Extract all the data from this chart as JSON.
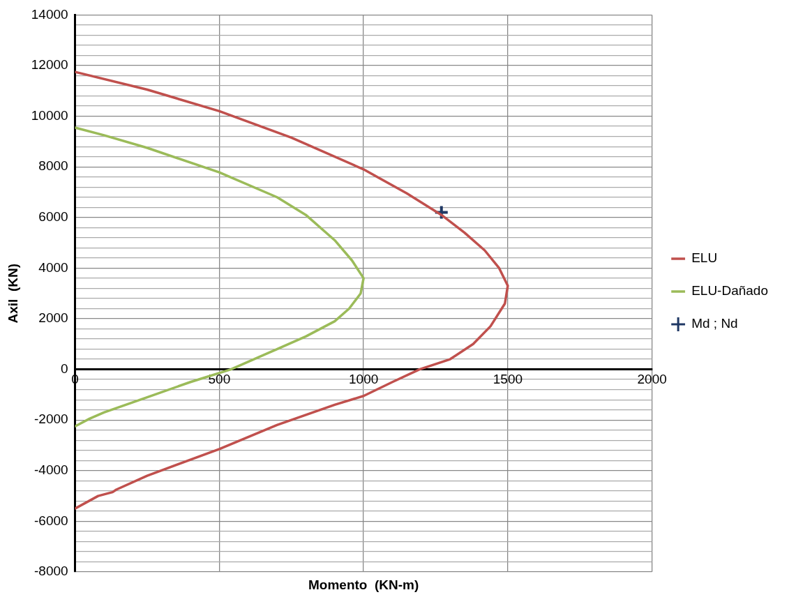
{
  "chart_data": {
    "type": "line",
    "xlabel": "Momento  (KN-m)",
    "ylabel": "Axil  (KN)",
    "xlim": [
      0,
      2000
    ],
    "xticks": [
      0,
      500,
      1000,
      1500,
      2000
    ],
    "ylim": [
      -8000,
      14000
    ],
    "yticks": [
      -8000,
      {
        "value": -7600,
        "label": null
      },
      {
        "value": -7200,
        "label": null
      },
      {
        "value": -6800,
        "label": null
      },
      {
        "value": -6400,
        "label": null
      },
      -6000,
      {
        "value": -5600,
        "label": null
      },
      {
        "value": -5200,
        "label": null
      },
      {
        "value": -4800,
        "label": null
      },
      {
        "value": -4400,
        "label": null
      },
      -4000,
      {
        "value": -3600,
        "label": null
      },
      {
        "value": -3200,
        "label": null
      },
      {
        "value": -2800,
        "label": null
      },
      {
        "value": -2400,
        "label": null
      },
      -2000,
      {
        "value": -1600,
        "label": null
      },
      {
        "value": -1200,
        "label": null
      },
      {
        "value": -800,
        "label": null
      },
      {
        "value": -400,
        "label": null
      },
      0,
      {
        "value": 400,
        "label": null
      },
      {
        "value": 800,
        "label": null
      },
      {
        "value": 1200,
        "label": null
      },
      {
        "value": 1600,
        "label": null
      },
      2000,
      {
        "value": 2400,
        "label": null
      },
      {
        "value": 2800,
        "label": null
      },
      {
        "value": 3200,
        "label": null
      },
      {
        "value": 3600,
        "label": null
      },
      4000,
      {
        "value": 4400,
        "label": null
      },
      {
        "value": 4800,
        "label": null
      },
      {
        "value": 5200,
        "label": null
      },
      {
        "value": 5600,
        "label": null
      },
      6000,
      {
        "value": 6400,
        "label": null
      },
      {
        "value": 6800,
        "label": null
      },
      {
        "value": 7200,
        "label": null
      },
      {
        "value": 7600,
        "label": null
      },
      8000,
      {
        "value": 8400,
        "label": null
      },
      {
        "value": 8800,
        "label": null
      },
      {
        "value": 9200,
        "label": null
      },
      {
        "value": 9600,
        "label": null
      },
      10000,
      {
        "value": 10400,
        "label": null
      },
      {
        "value": 10800,
        "label": null
      },
      {
        "value": 11200,
        "label": null
      },
      {
        "value": 11600,
        "label": null
      },
      12000,
      {
        "value": 12400,
        "label": null
      },
      {
        "value": 12800,
        "label": null
      },
      {
        "value": 13200,
        "label": null
      },
      {
        "value": 13600,
        "label": null
      },
      14000
    ],
    "grid": true,
    "legend": "right",
    "marker": "none",
    "line_style": "solid",
    "series": [
      {
        "name": "ELU",
        "color": "#c0504d",
        "x": [
          0,
          250,
          500,
          750,
          1000,
          1150,
          1270,
          1350,
          1420,
          1470,
          1500,
          1490,
          1440,
          1380,
          1300,
          1194,
          1100,
          1000,
          900,
          700,
          500,
          250,
          143,
          130,
          80,
          0
        ],
        "values": [
          11750,
          11050,
          10200,
          9150,
          7900,
          6950,
          6100,
          5400,
          4700,
          4000,
          3300,
          2600,
          1700,
          1000,
          400,
          0,
          -500,
          -1050,
          -1400,
          -2200,
          -3150,
          -4200,
          -4750,
          -4850,
          -5000,
          -5500
        ]
      },
      {
        "name": "ELU-Dañado",
        "color": "#9bbb59",
        "x": [
          0,
          100,
          250,
          500,
          700,
          800,
          900,
          960,
          1000,
          990,
          950,
          900,
          800,
          700,
          540,
          400,
          250,
          150,
          100,
          50,
          0
        ],
        "values": [
          9550,
          9250,
          8750,
          7780,
          6800,
          6100,
          5100,
          4300,
          3600,
          3000,
          2400,
          1900,
          1300,
          800,
          0,
          -500,
          -1100,
          -1500,
          -1700,
          -1950,
          -2250
        ]
      },
      {
        "name": "Md ; Nd",
        "color": "#1f3864",
        "type": "scatter",
        "marker": "cross",
        "x": [
          1270
        ],
        "values": [
          6200
        ]
      }
    ]
  }
}
